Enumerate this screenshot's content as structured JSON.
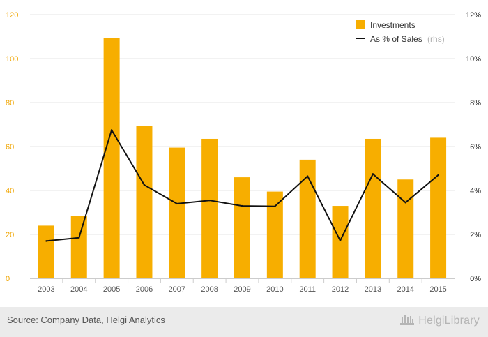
{
  "chart_data": {
    "type": "bar",
    "categories": [
      "2003",
      "2004",
      "2005",
      "2006",
      "2007",
      "2008",
      "2009",
      "2010",
      "2011",
      "2012",
      "2013",
      "2014",
      "2015"
    ],
    "series": [
      {
        "name": "Investments",
        "type": "bar",
        "axis": "left",
        "values": [
          24,
          28.5,
          109.5,
          69.5,
          59.5,
          63.5,
          46,
          39.5,
          54,
          33,
          63.5,
          45,
          64
        ]
      },
      {
        "name": "As % of Sales",
        "name_suffix": "(rhs)",
        "type": "line",
        "axis": "right",
        "values": [
          1.7,
          1.85,
          6.75,
          4.25,
          3.4,
          3.55,
          3.3,
          3.28,
          4.65,
          1.72,
          4.75,
          3.45,
          4.7
        ]
      }
    ],
    "ylim": [
      0,
      120
    ],
    "y_ticks": [
      "0",
      "20",
      "40",
      "60",
      "80",
      "100",
      "120"
    ],
    "y2lim": [
      0,
      12
    ],
    "y2_ticks": [
      "0%",
      "2%",
      "4%",
      "6%",
      "8%",
      "10%",
      "12%"
    ],
    "grid": true,
    "legend_position": "top-right",
    "colors": {
      "bar": "#f7ae00",
      "line": "#111111",
      "left_axis_text": "#f0a500",
      "axis_text": "#555555",
      "grid": "#e6e6e6",
      "rhs": "#b0b0b0"
    }
  },
  "footer": {
    "source": "Source: Company Data, Helgi Analytics",
    "brand": "HelgiLibrary",
    "brand_icon": "library-columns-icon"
  }
}
